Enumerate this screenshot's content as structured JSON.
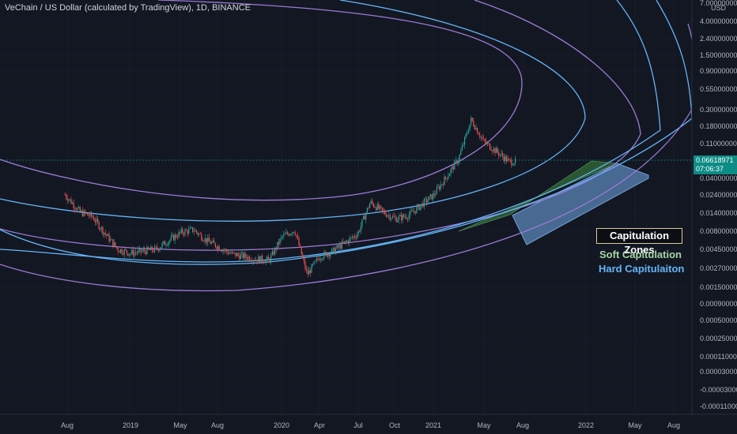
{
  "header": {
    "title": "VeChain / US Dollar (calculated by TradingView), 1D, BINANCE",
    "unit": "USD"
  },
  "price_label": {
    "value": "0.06618971",
    "countdown": "07:06:37"
  },
  "legend": {
    "title": "Capitulation Zones",
    "soft": "Soft Capitulation",
    "hard": "Hard Capitulaiton"
  },
  "colors": {
    "background": "#131722",
    "candle_up": "#26a69a",
    "candle_down": "#ef5350",
    "purple_arc": "#9c7bd6",
    "blue_arc": "#64b5f6",
    "soft_zone": "#2e5d34",
    "hard_zone": "#5b86b8",
    "price_line": "#0d8c86"
  },
  "chart_data": {
    "type": "candlestick",
    "symbol": "VETUSD",
    "y_scale": "log",
    "y_ticks": [
      "7.00000000",
      "4.00000000",
      "2.40000000",
      "1.50000000",
      "0.90000000",
      "0.55000000",
      "0.30000000",
      "0.18000000",
      "0.11000000",
      "0.04000000",
      "0.02400000",
      "0.01400000",
      "0.00800000",
      "0.00450000",
      "0.00270000",
      "0.00150000",
      "0.00090000",
      "0.00050000",
      "0.00025000",
      "0.00011000",
      "0.00003000",
      "-0.00003000",
      "-0.00011000"
    ],
    "x_ticks": [
      "Aug",
      "2019",
      "May",
      "Aug",
      "2020",
      "Apr",
      "Jul",
      "Oct",
      "2021",
      "May",
      "Aug",
      "2022",
      "May",
      "Aug"
    ],
    "current_price": 0.06618971,
    "price_series": {
      "description_free": true,
      "dates": [
        "2018-08",
        "2018-09",
        "2018-10",
        "2018-11",
        "2018-12",
        "2019-01",
        "2019-03",
        "2019-05",
        "2019-06",
        "2019-07",
        "2019-09",
        "2019-11",
        "2019-12",
        "2020-01",
        "2020-02",
        "2020-03",
        "2020-04",
        "2020-05",
        "2020-07",
        "2020-08",
        "2020-09",
        "2020-10",
        "2020-11",
        "2021-01",
        "2021-02",
        "2021-03",
        "2021-04",
        "2021-05",
        "2021-06",
        "2021-07"
      ],
      "close": [
        0.0245,
        0.0145,
        0.0125,
        0.0075,
        0.0047,
        0.0042,
        0.0047,
        0.0078,
        0.0085,
        0.0062,
        0.0041,
        0.0035,
        0.0034,
        0.0068,
        0.0085,
        0.0022,
        0.0038,
        0.0044,
        0.0075,
        0.0195,
        0.0145,
        0.0118,
        0.013,
        0.024,
        0.041,
        0.072,
        0.235,
        0.12,
        0.09,
        0.0662
      ]
    }
  }
}
